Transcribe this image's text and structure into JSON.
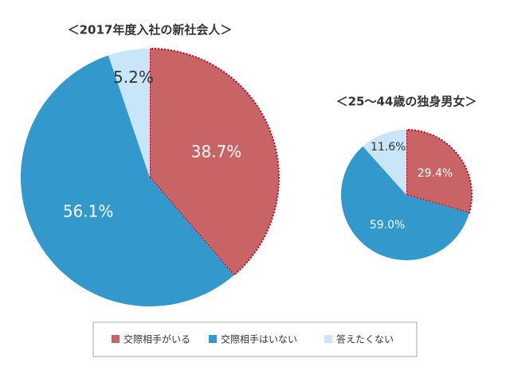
{
  "chart_data": [
    {
      "type": "pie",
      "title": "＜2017年度入社の新社会人＞",
      "values": [
        38.7,
        56.1,
        5.2
      ],
      "value_labels": [
        "38.7%",
        "56.1%",
        "5.2%"
      ]
    },
    {
      "type": "pie",
      "title": "＜25〜44歳の独身男女＞",
      "values": [
        29.4,
        59.0,
        11.6
      ],
      "value_labels": [
        "29.4%",
        "59.0%",
        "11.6%"
      ]
    }
  ],
  "legend": [
    {
      "name": "交際相手がいる",
      "color": "#c96466"
    },
    {
      "name": "交際相手はいない",
      "color": "#3399cc"
    },
    {
      "name": "答えたくない",
      "color": "#c8e6f8"
    }
  ]
}
